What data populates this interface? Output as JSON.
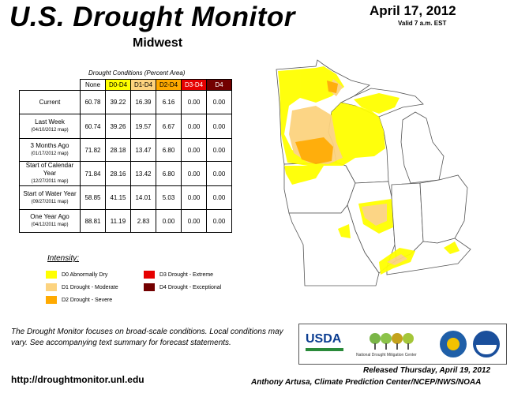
{
  "header": {
    "title": "U.S. Drought Monitor",
    "region": "Midwest",
    "date": "April 17, 2012",
    "valid": "Valid 7 a.m. EST"
  },
  "table": {
    "caption": "Drought Conditions (Percent Area)",
    "columns": [
      "None",
      "D0-D4",
      "D1-D4",
      "D2-D4",
      "D3-D4",
      "D4"
    ],
    "rows": [
      {
        "label": "Current",
        "sub": "",
        "values": [
          "60.78",
          "39.22",
          "16.39",
          "6.16",
          "0.00",
          "0.00"
        ]
      },
      {
        "label": "Last Week",
        "sub": "(04/10/2012 map)",
        "values": [
          "60.74",
          "39.26",
          "19.57",
          "6.67",
          "0.00",
          "0.00"
        ]
      },
      {
        "label": "3 Months Ago",
        "sub": "(01/17/2012 map)",
        "values": [
          "71.82",
          "28.18",
          "13.47",
          "6.80",
          "0.00",
          "0.00"
        ]
      },
      {
        "label": "Start of Calendar Year",
        "sub": "(12/27/2011 map)",
        "values": [
          "71.84",
          "28.16",
          "13.42",
          "6.80",
          "0.00",
          "0.00"
        ]
      },
      {
        "label": "Start of Water Year",
        "sub": "(09/27/2011 map)",
        "values": [
          "58.85",
          "41.15",
          "14.01",
          "5.03",
          "0.00",
          "0.00"
        ]
      },
      {
        "label": "One Year Ago",
        "sub": "(04/12/2011 map)",
        "values": [
          "88.81",
          "11.19",
          "2.83",
          "0.00",
          "0.00",
          "0.00"
        ]
      }
    ]
  },
  "legend": {
    "title": "Intensity:",
    "items": [
      {
        "label": "D0 Abnormally Dry",
        "color": "#ffff00"
      },
      {
        "label": "D1 Drought - Moderate",
        "color": "#fcd37f"
      },
      {
        "label": "D2 Drought - Severe",
        "color": "#ffaa00"
      },
      {
        "label": "D3 Drought - Extreme",
        "color": "#e60000"
      },
      {
        "label": "D4 Drought - Exceptional",
        "color": "#730000"
      }
    ]
  },
  "footnote": "The Drought Monitor focuses on broad-scale conditions. Local conditions may vary. See accompanying text summary for forecast statements.",
  "url": "http://droughtmonitor.unl.edu",
  "released": "Released Thursday, April 19, 2012",
  "author": "Anthony Artusa, Climate Prediction Center/NCEP/NWS/NOAA",
  "logos": {
    "usda": "USDA",
    "ndmc": "National Drought Mitigation Center"
  }
}
